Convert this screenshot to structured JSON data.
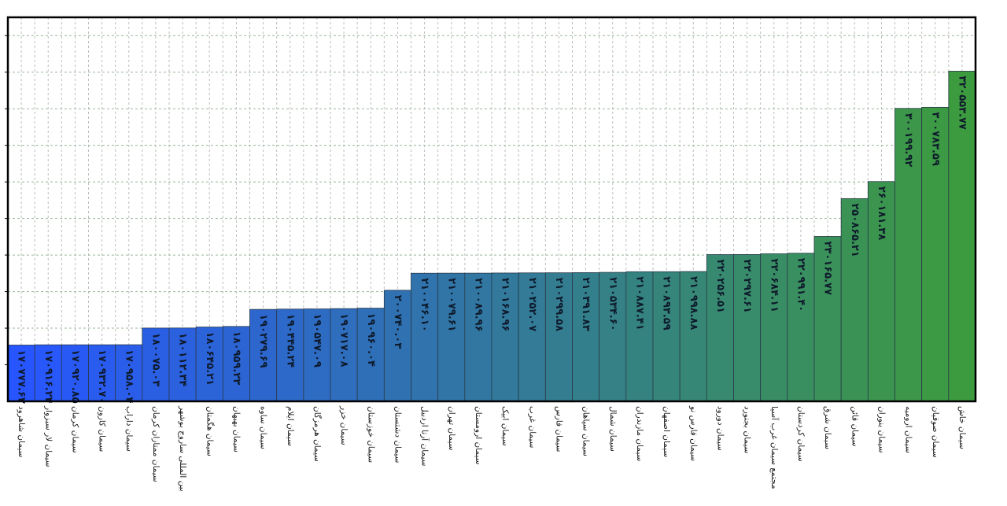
{
  "chart_data": {
    "type": "bar",
    "title": "",
    "xlabel": "",
    "ylabel": "",
    "grid": true,
    "ylim": [
      140000,
      350000
    ],
    "categories": [
      "سیمان شاهرود",
      "سیمان لار سبزوار",
      "سیمان کرمان",
      "سیمان کارون",
      "سیمان داراب",
      "سیمان ممتازان کرمان",
      "بین المللی ساروج بوشهر",
      "سیمان هگمتان",
      "سیمان بهبهان",
      "سیمان ساوه",
      "سیمان ایلام",
      "سیمان هرمزگان",
      "سیمان خزر",
      "سیمان خوزستان",
      "سیمان دشتستان",
      "سیمان آرتا اردبیل",
      "سیمان تهران",
      "سیمان ارومستان",
      "سیمان ابیک",
      "سیمان غرب",
      "سیمان فارس",
      "سیمان سپاهان",
      "سیمان شمال",
      "سیمان مازندران",
      "سیمان اصفهان",
      "سیمان فارس نو",
      "سیمان دورود",
      "سیمان بجنورد",
      "مجتمع سیمان غرب آسیا",
      "سیمان کردستان",
      "سیمان شرق",
      "سیمان قائن",
      "سیمان بنوران",
      "سیمان ارومیه",
      "سیمان صوفیان",
      "سیمان خاش"
    ],
    "values": [
      170777.62,
      170916.24,
      170920.85,
      170932.7,
      170958.04,
      180075.03,
      180112.34,
      180645.21,
      180959.23,
      190279.69,
      190445.24,
      190547.09,
      190717.08,
      190960.04,
      200740.03,
      210046.1,
      210079.61,
      210089.96,
      210168.96,
      210252.07,
      210299.58,
      210391.83,
      210534.6,
      210887.41,
      210893.59,
      210998.88,
      220256.51,
      220297.61,
      220684.11,
      220991.4,
      230165.77,
      250865.21,
      260181.38,
      300199.92,
      300783.59,
      320553.77
    ],
    "value_labels": [
      "۱۷۰۷۷۷.۶۲",
      "۱۷۰۹۱۶.۲۴",
      "۱۷۰۹۲۰.۸۵",
      "۱۷۰۹۳۲.۷۰",
      "۱۷۰۹۵۸.۰۴",
      "۱۸۰۰۷۵.۰۳",
      "۱۸۰۱۱۲.۳۴",
      "۱۸۰۶۴۵.۲۱",
      "۱۸۰۹۵۹.۲۳",
      "۱۹۰۲۷۹.۶۹",
      "۱۹۰۴۴۵.۲۴",
      "۱۹۰۵۴۷.۰۹",
      "۱۹۰۷۱۷.۰۸",
      "۱۹۰۹۶۰.۰۴",
      "۲۰۰۷۴۰.۰۳",
      "۲۱۰۰۴۶.۱۰",
      "۲۱۰۰۷۹.۶۱",
      "۲۱۰۰۸۹.۹۶",
      "۲۱۰۱۶۸.۹۶",
      "۲۱۰۲۵۲.۰۷",
      "۲۱۰۲۹۹.۵۸",
      "۲۱۰۳۹۱.۸۳",
      "۲۱۰۵۳۴.۶۰",
      "۲۱۰۸۸۷.۴۱",
      "۲۱۰۸۹۳.۵۹",
      "۲۱۰۹۹۸.۸۸",
      "۲۲۰۲۵۶.۵۱",
      "۲۲۰۲۹۷.۶۱",
      "۲۲۰۶۸۴.۱۱",
      "۲۲۰۹۹۱.۴۰",
      "۲۳۰۱۶۵.۷۷",
      "۲۵۰۸۶۵.۲۱",
      "۲۶۰۱۸۱.۳۸",
      "۳۰۰۱۹۹.۹۲",
      "۳۰۰۷۸۳.۵۹",
      "۳۲۰۵۵۳.۷۷"
    ],
    "color_start": "#2755ff",
    "color_end": "#3d9b3f"
  }
}
